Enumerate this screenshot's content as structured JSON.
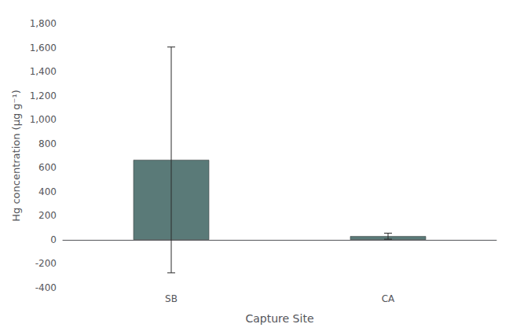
{
  "chart_data": {
    "type": "bar",
    "categories": [
      "SB",
      "CA"
    ],
    "values": [
      665,
      30
    ],
    "errors": [
      940,
      25
    ],
    "color": "#5a7a78",
    "xlabel": "Capture Site",
    "ylabel": "Hg concentration (μg g⁻¹)",
    "ylim": [
      -400,
      1800
    ],
    "yticks": [
      -400,
      -200,
      0,
      200,
      400,
      600,
      800,
      1000,
      1200,
      1400,
      1600,
      1800
    ],
    "grid": false
  }
}
